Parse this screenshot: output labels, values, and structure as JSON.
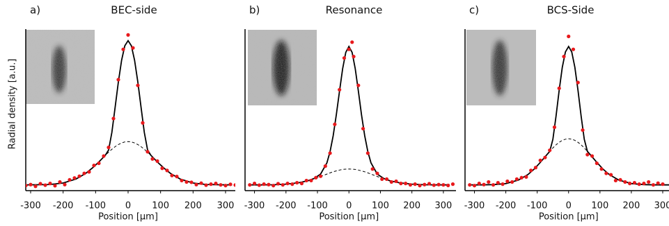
{
  "chart_data": [
    {
      "type": "line",
      "panel_label": "a)",
      "title": "BEC-side",
      "xlabel": "Position [µm]",
      "ylabel": "Radial density [a.u.]",
      "xlim": [
        -315,
        330
      ],
      "ylim": [
        -0.03,
        1.1
      ],
      "xticks": [
        -300,
        -200,
        -100,
        0,
        100,
        200,
        300
      ],
      "series": [
        {
          "type": "line",
          "color": "#000000",
          "dash": false,
          "x": [
            -320,
            -280,
            -240,
            -200,
            -160,
            -130,
            -110,
            -90,
            -70,
            -60,
            -50,
            -40,
            -30,
            -20,
            -10,
            0,
            10,
            20,
            30,
            40,
            50,
            60,
            70,
            90,
            110,
            130,
            160,
            200,
            240,
            280,
            320
          ],
          "values": [
            0.01,
            0.011,
            0.013,
            0.023,
            0.051,
            0.09,
            0.127,
            0.169,
            0.215,
            0.252,
            0.374,
            0.545,
            0.723,
            0.875,
            0.975,
            1.01,
            0.975,
            0.875,
            0.723,
            0.545,
            0.374,
            0.252,
            0.215,
            0.169,
            0.127,
            0.09,
            0.051,
            0.023,
            0.013,
            0.011,
            0.01
          ]
        },
        {
          "type": "line",
          "color": "#000000",
          "dash": true,
          "x": [
            -320,
            -280,
            -240,
            -200,
            -160,
            -130,
            -110,
            -90,
            -70,
            -60,
            -50,
            -40,
            -30,
            -20,
            -10,
            0,
            10,
            20,
            30,
            40,
            50,
            60,
            70,
            90,
            110,
            130,
            160,
            200,
            240,
            280,
            320
          ],
          "values": [
            0.01,
            0.011,
            0.013,
            0.023,
            0.051,
            0.09,
            0.127,
            0.169,
            0.215,
            0.237,
            0.257,
            0.275,
            0.29,
            0.301,
            0.308,
            0.31,
            0.308,
            0.301,
            0.29,
            0.275,
            0.257,
            0.237,
            0.215,
            0.169,
            0.127,
            0.09,
            0.051,
            0.023,
            0.013,
            0.011,
            0.01
          ]
        },
        {
          "type": "scatter",
          "color": "#e8191c",
          "x": [
            -315,
            -300,
            -285,
            -270,
            -255,
            -240,
            -225,
            -210,
            -195,
            -180,
            -165,
            -150,
            -135,
            -120,
            -105,
            -90,
            -75,
            -60,
            -45,
            -30,
            -15,
            0,
            15,
            30,
            45,
            60,
            75,
            90,
            105,
            120,
            135,
            150,
            165,
            180,
            195,
            210,
            225,
            240,
            255,
            270,
            285,
            300,
            315,
            330
          ],
          "values": [
            0.005,
            0.012,
            0.0,
            0.018,
            0.008,
            0.02,
            0.004,
            0.03,
            0.012,
            0.045,
            0.058,
            0.07,
            0.09,
            0.1,
            0.145,
            0.16,
            0.21,
            0.27,
            0.47,
            0.74,
            0.95,
            1.05,
            0.96,
            0.7,
            0.44,
            0.24,
            0.19,
            0.175,
            0.125,
            0.11,
            0.075,
            0.068,
            0.04,
            0.03,
            0.028,
            0.012,
            0.022,
            0.008,
            0.015,
            0.02,
            0.01,
            0.005,
            0.014,
            0.009
          ]
        }
      ]
    },
    {
      "type": "line",
      "panel_label": "b)",
      "title": "Resonance",
      "xlabel": "Position [µm]",
      "xlim": [
        -330,
        340
      ],
      "ylim": [
        -0.03,
        1.1
      ],
      "xticks": [
        -300,
        -200,
        -100,
        0,
        100,
        200,
        300
      ],
      "series": [
        {
          "type": "line",
          "color": "#000000",
          "dash": false,
          "x": [
            -320,
            -280,
            -240,
            -200,
            -160,
            -130,
            -110,
            -90,
            -70,
            -60,
            -50,
            -40,
            -30,
            -20,
            -10,
            0,
            10,
            20,
            30,
            40,
            50,
            60,
            70,
            90,
            110,
            130,
            160,
            200,
            240,
            280,
            320
          ],
          "values": [
            0.01,
            0.01,
            0.011,
            0.015,
            0.025,
            0.039,
            0.055,
            0.085,
            0.163,
            0.24,
            0.351,
            0.496,
            0.66,
            0.816,
            0.929,
            0.97,
            0.929,
            0.816,
            0.66,
            0.496,
            0.351,
            0.24,
            0.163,
            0.085,
            0.055,
            0.039,
            0.025,
            0.015,
            0.011,
            0.01,
            0.01
          ]
        },
        {
          "type": "line",
          "color": "#000000",
          "dash": true,
          "x": [
            -320,
            -280,
            -240,
            -200,
            -160,
            -130,
            -110,
            -90,
            -70,
            -60,
            -50,
            -40,
            -30,
            -20,
            -10,
            0,
            10,
            20,
            30,
            40,
            50,
            60,
            70,
            90,
            110,
            130,
            160,
            200,
            240,
            280,
            320
          ],
          "values": [
            0.01,
            0.01,
            0.011,
            0.015,
            0.025,
            0.039,
            0.053,
            0.068,
            0.085,
            0.093,
            0.101,
            0.107,
            0.113,
            0.117,
            0.119,
            0.12,
            0.119,
            0.117,
            0.113,
            0.107,
            0.101,
            0.093,
            0.085,
            0.068,
            0.053,
            0.039,
            0.025,
            0.015,
            0.011,
            0.01,
            0.01
          ]
        },
        {
          "type": "scatter",
          "color": "#e8191c",
          "x": [
            -315,
            -300,
            -285,
            -270,
            -255,
            -240,
            -225,
            -210,
            -195,
            -180,
            -165,
            -150,
            -135,
            -120,
            -105,
            -90,
            -75,
            -60,
            -45,
            -30,
            -15,
            0,
            10,
            15,
            30,
            45,
            60,
            75,
            90,
            105,
            120,
            135,
            150,
            165,
            180,
            195,
            210,
            225,
            240,
            255,
            270,
            285,
            300,
            315,
            330
          ],
          "values": [
            0.01,
            0.02,
            0.008,
            0.015,
            0.012,
            0.005,
            0.018,
            0.01,
            0.02,
            0.015,
            0.025,
            0.02,
            0.04,
            0.04,
            0.06,
            0.07,
            0.14,
            0.23,
            0.43,
            0.67,
            0.89,
            0.95,
            1.0,
            0.9,
            0.7,
            0.4,
            0.23,
            0.12,
            0.09,
            0.05,
            0.05,
            0.03,
            0.035,
            0.02,
            0.02,
            0.01,
            0.015,
            0.005,
            0.012,
            0.018,
            0.008,
            0.012,
            0.01,
            0.006,
            0.015
          ]
        }
      ]
    },
    {
      "type": "line",
      "panel_label": "c)",
      "title": "BCS-Side",
      "xlabel": "Position [µm]",
      "xlim": [
        -330,
        320
      ],
      "ylim": [
        -0.03,
        1.1
      ],
      "xticks": [
        -300,
        -200,
        -100,
        0,
        100,
        200,
        300
      ],
      "series": [
        {
          "type": "line",
          "color": "#000000",
          "dash": false,
          "x": [
            -320,
            -280,
            -240,
            -200,
            -160,
            -130,
            -110,
            -90,
            -70,
            -60,
            -50,
            -40,
            -30,
            -20,
            -10,
            0,
            10,
            20,
            30,
            40,
            50,
            60,
            70,
            90,
            110,
            130,
            160,
            200,
            240,
            280,
            320
          ],
          "values": [
            0.01,
            0.01,
            0.012,
            0.019,
            0.043,
            0.081,
            0.119,
            0.166,
            0.217,
            0.242,
            0.326,
            0.486,
            0.665,
            0.825,
            0.932,
            0.97,
            0.932,
            0.825,
            0.665,
            0.486,
            0.326,
            0.242,
            0.217,
            0.166,
            0.119,
            0.081,
            0.043,
            0.019,
            0.012,
            0.01,
            0.01
          ]
        },
        {
          "type": "line",
          "color": "#000000",
          "dash": true,
          "x": [
            -320,
            -280,
            -240,
            -200,
            -160,
            -130,
            -110,
            -90,
            -70,
            -60,
            -50,
            -40,
            -30,
            -20,
            -10,
            0,
            10,
            20,
            30,
            40,
            50,
            60,
            70,
            90,
            110,
            130,
            160,
            200,
            240,
            280,
            320
          ],
          "values": [
            0.01,
            0.01,
            0.012,
            0.019,
            0.043,
            0.081,
            0.119,
            0.166,
            0.217,
            0.242,
            0.266,
            0.288,
            0.305,
            0.319,
            0.327,
            0.33,
            0.327,
            0.319,
            0.305,
            0.288,
            0.266,
            0.242,
            0.217,
            0.166,
            0.119,
            0.081,
            0.043,
            0.019,
            0.012,
            0.01,
            0.01
          ]
        },
        {
          "type": "scatter",
          "color": "#e8191c",
          "x": [
            -315,
            -300,
            -285,
            -270,
            -255,
            -240,
            -225,
            -210,
            -195,
            -180,
            -165,
            -150,
            -135,
            -120,
            -105,
            -90,
            -75,
            -60,
            -45,
            -30,
            -15,
            0,
            15,
            30,
            45,
            60,
            75,
            90,
            105,
            120,
            135,
            150,
            165,
            180,
            195,
            210,
            225,
            240,
            255,
            270,
            285,
            300
          ],
          "values": [
            0.01,
            0.005,
            0.02,
            0.012,
            0.03,
            0.01,
            0.025,
            0.015,
            0.035,
            0.03,
            0.05,
            0.06,
            0.065,
            0.11,
            0.13,
            0.18,
            0.2,
            0.25,
            0.41,
            0.68,
            0.9,
            1.04,
            0.95,
            0.72,
            0.39,
            0.22,
            0.21,
            0.16,
            0.12,
            0.09,
            0.08,
            0.04,
            0.045,
            0.03,
            0.02,
            0.025,
            0.015,
            0.02,
            0.03,
            0.01,
            0.022,
            0.015
          ]
        }
      ]
    }
  ]
}
